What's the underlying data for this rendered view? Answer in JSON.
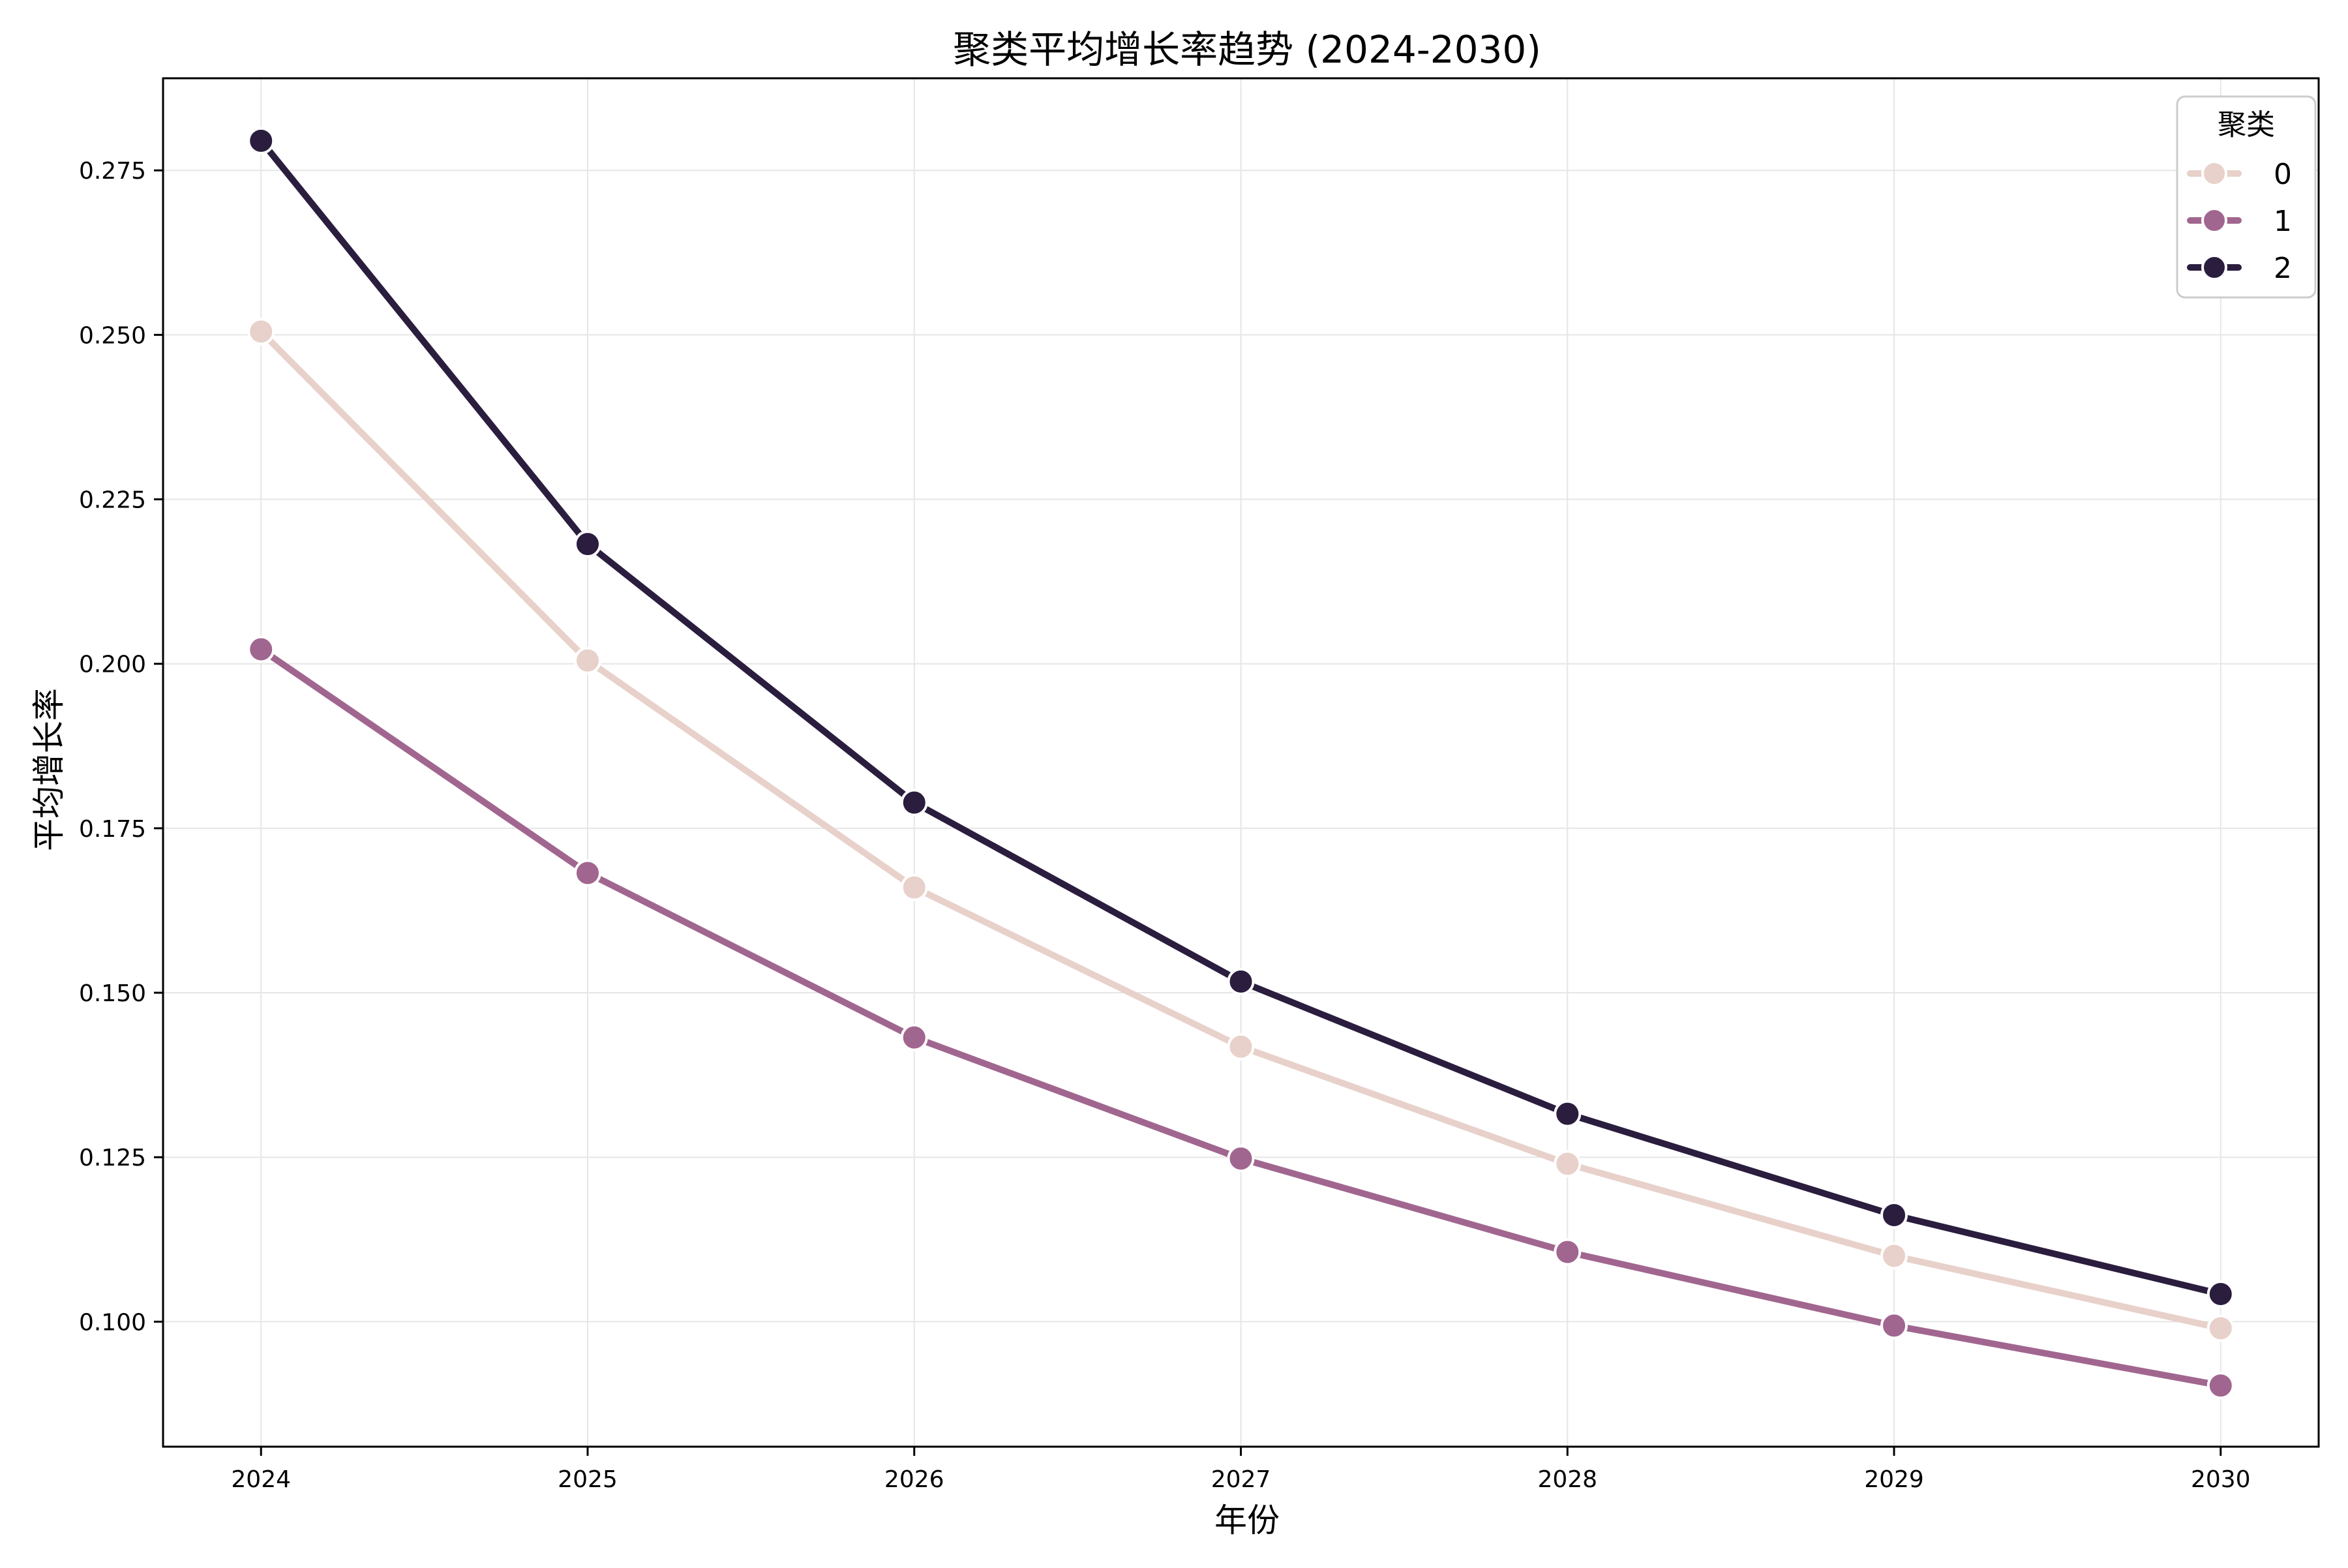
{
  "chart_data": {
    "type": "line",
    "title": "聚类平均增长率趋势 (2024-2030)",
    "xlabel": "年份",
    "ylabel": "平均增长率",
    "x": [
      2024,
      2025,
      2026,
      2027,
      2028,
      2029,
      2030
    ],
    "xticks": [
      "2024",
      "2025",
      "2026",
      "2027",
      "2028",
      "2029",
      "2030"
    ],
    "yticks": [
      "0.100",
      "0.125",
      "0.150",
      "0.175",
      "0.200",
      "0.225",
      "0.250",
      "0.275"
    ],
    "ytick_values": [
      0.1,
      0.125,
      0.15,
      0.175,
      0.2,
      0.225,
      0.25,
      0.275
    ],
    "ylim": [
      0.081,
      0.289
    ],
    "xlim": [
      2023.7,
      2030.3
    ],
    "grid": true,
    "legend": {
      "title": "聚类",
      "placement": "top-right"
    },
    "series": [
      {
        "name": "0",
        "color": "#e8d1ca",
        "values": [
          0.2505,
          0.2005,
          0.166,
          0.1418,
          0.124,
          0.11,
          0.099
        ]
      },
      {
        "name": "1",
        "color": "#a1668f",
        "values": [
          0.2022,
          0.1682,
          0.1432,
          0.1248,
          0.1106,
          0.0994,
          0.0903
        ]
      },
      {
        "name": "2",
        "color": "#2a1d3e",
        "values": [
          0.2795,
          0.2182,
          0.1789,
          0.1517,
          0.1316,
          0.1162,
          0.1042
        ]
      }
    ]
  }
}
